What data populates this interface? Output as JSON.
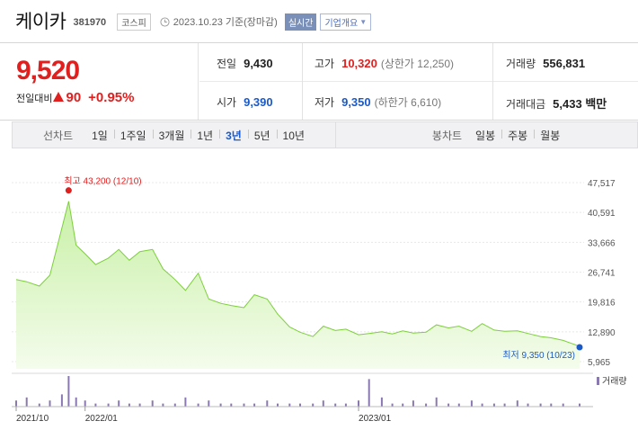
{
  "header": {
    "stock_name": "케이카",
    "stock_code": "381970",
    "market": "코스피",
    "date_text": "2023.10.23 기준(장마감)",
    "realtime_label": "실시간",
    "company_btn_label": "기업개요",
    "icons": {
      "clock": "clock-icon",
      "dropdown": "caret-down-icon"
    }
  },
  "price": {
    "current": "9,520",
    "change_label": "전일대비",
    "change_value": "90",
    "change_pct": "+0.95%",
    "direction_icon": "up-triangle-icon",
    "colors": {
      "up": "#e01f1f",
      "down": "#1a5ac8"
    }
  },
  "stats": {
    "prev_close": {
      "label": "전일",
      "value": "9,430"
    },
    "high": {
      "label": "고가",
      "value": "10,320",
      "sub": "(상한가 12,250)"
    },
    "volume": {
      "label": "거래량",
      "value": "556,831"
    },
    "open": {
      "label": "시가",
      "value": "9,390"
    },
    "low": {
      "label": "저가",
      "value": "9,350",
      "sub": "(하한가 6,610)"
    },
    "trade_value": {
      "label": "거래대금",
      "value": "5,433 백만"
    }
  },
  "period_tabs": {
    "line_label": "선차트",
    "line_tabs": [
      "1일",
      "1주일",
      "3개월",
      "1년",
      "3년",
      "5년",
      "10년"
    ],
    "active_tab": "3년",
    "candle_label": "봉차트",
    "candle_tabs": [
      "일봉",
      "주봉",
      "월봉"
    ]
  },
  "chart_data": {
    "type": "area",
    "y_ticks": [
      "47,517",
      "40,591",
      "33,666",
      "26,741",
      "19,816",
      "12,890",
      "5,965"
    ],
    "ylim": [
      5965,
      47517
    ],
    "x_ticks": [
      "2021/10",
      "2022/01",
      "2023/01"
    ],
    "high_annotation": "최고 43,200 (12/10)",
    "low_annotation": "최저 9,350 (10/23)",
    "volume_legend": "거래량",
    "color_line": "#7ccf3a",
    "color_fill_top": "#c8f0a6",
    "color_fill_bottom": "#f4fcec",
    "color_volume": "#8a79b0",
    "dates": [
      "2021-10-01",
      "2021-10-15",
      "2021-11-01",
      "2021-11-15",
      "2021-12-01",
      "2021-12-10",
      "2021-12-20",
      "2022-01-01",
      "2022-01-15",
      "2022-02-01",
      "2022-02-15",
      "2022-03-01",
      "2022-03-15",
      "2022-04-01",
      "2022-04-15",
      "2022-05-01",
      "2022-05-15",
      "2022-06-01",
      "2022-06-15",
      "2022-07-01",
      "2022-07-15",
      "2022-08-01",
      "2022-08-15",
      "2022-09-01",
      "2022-09-15",
      "2022-10-01",
      "2022-10-15",
      "2022-11-01",
      "2022-11-15",
      "2022-12-01",
      "2022-12-15",
      "2023-01-01",
      "2023-01-15",
      "2023-02-01",
      "2023-02-15",
      "2023-03-01",
      "2023-03-15",
      "2023-04-01",
      "2023-04-15",
      "2023-05-01",
      "2023-05-15",
      "2023-06-01",
      "2023-06-15",
      "2023-07-01",
      "2023-07-15",
      "2023-08-01",
      "2023-08-15",
      "2023-09-01",
      "2023-09-15",
      "2023-10-01",
      "2023-10-23"
    ],
    "values": [
      25000,
      24500,
      23500,
      26000,
      37000,
      43200,
      33000,
      31000,
      28500,
      30000,
      32000,
      29500,
      31500,
      32000,
      27500,
      25000,
      22500,
      26500,
      20500,
      19500,
      19000,
      18500,
      21500,
      20500,
      17000,
      14000,
      12800,
      11800,
      14200,
      13200,
      13500,
      12200,
      12500,
      12900,
      12400,
      13100,
      12600,
      12800,
      14500,
      13800,
      14200,
      13000,
      14800,
      13300,
      13000,
      13100,
      12500,
      11800,
      11500,
      10900,
      9520
    ],
    "volume": [
      2,
      3,
      1,
      2,
      4,
      10,
      3,
      2,
      1,
      1,
      2,
      1,
      1,
      2,
      1,
      1,
      3,
      1,
      2,
      1,
      1,
      1,
      1,
      2,
      1,
      1,
      1,
      1,
      2,
      1,
      1,
      2,
      9,
      3,
      1,
      1,
      2,
      1,
      3,
      1,
      1,
      2,
      1,
      1,
      1,
      2,
      1,
      1,
      1,
      1,
      1
    ]
  }
}
